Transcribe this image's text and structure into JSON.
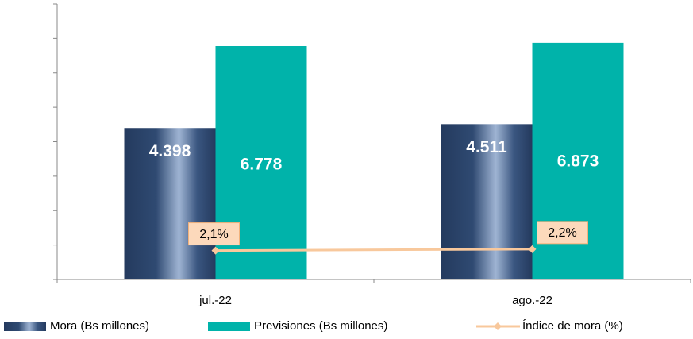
{
  "chart_data": {
    "type": "bar",
    "categories": [
      "jul.-22",
      "ago.-22"
    ],
    "series": [
      {
        "name": "Mora (Bs millones)",
        "type": "bar",
        "color": "#243a5e",
        "values": [
          4398,
          4511
        ],
        "value_labels": [
          "4.398",
          "4.511"
        ]
      },
      {
        "name": "Previsiones (Bs millones)",
        "type": "bar",
        "color": "#00b3aa",
        "values": [
          6778,
          6873
        ],
        "value_labels": [
          "6.778",
          "6.873"
        ]
      },
      {
        "name": "Índice de mora (%)",
        "type": "line",
        "axis": "y2",
        "color": "#f8c89c",
        "values": [
          2.1,
          2.2
        ],
        "value_labels": [
          "2,1%",
          "2,2%"
        ]
      }
    ],
    "ylim": [
      0,
      8000
    ],
    "yticks": [
      0,
      1000,
      2000,
      3000,
      4000,
      5000,
      6000,
      7000,
      8000
    ],
    "y2lim": [
      0,
      20
    ],
    "legend": "bottom"
  }
}
